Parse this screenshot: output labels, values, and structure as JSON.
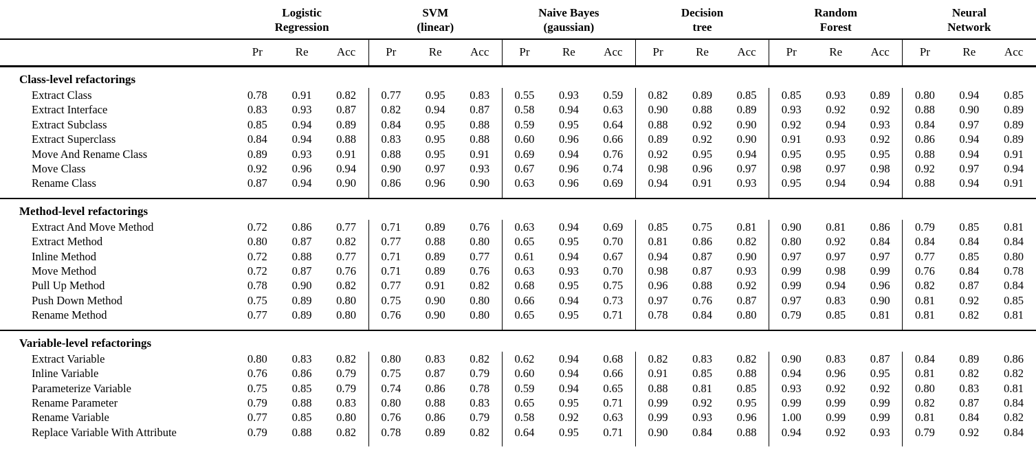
{
  "table": {
    "classifiers": [
      {
        "line1": "Logistic",
        "line2": "Regression"
      },
      {
        "line1": "SVM",
        "line2": "(linear)"
      },
      {
        "line1": "Naive Bayes",
        "line2": "(gaussian)"
      },
      {
        "line1": "Decision",
        "line2": "tree"
      },
      {
        "line1": "Random",
        "line2": "Forest"
      },
      {
        "line1": "Neural",
        "line2": "Network"
      }
    ],
    "metrics": [
      "Pr",
      "Re",
      "Acc"
    ],
    "sections": [
      {
        "title": "Class-level refactorings",
        "rows": [
          {
            "label": "Extract Class",
            "values": [
              "0.78",
              "0.91",
              "0.82",
              "0.77",
              "0.95",
              "0.83",
              "0.55",
              "0.93",
              "0.59",
              "0.82",
              "0.89",
              "0.85",
              "0.85",
              "0.93",
              "0.89",
              "0.80",
              "0.94",
              "0.85"
            ]
          },
          {
            "label": "Extract Interface",
            "values": [
              "0.83",
              "0.93",
              "0.87",
              "0.82",
              "0.94",
              "0.87",
              "0.58",
              "0.94",
              "0.63",
              "0.90",
              "0.88",
              "0.89",
              "0.93",
              "0.92",
              "0.92",
              "0.88",
              "0.90",
              "0.89"
            ]
          },
          {
            "label": "Extract Subclass",
            "values": [
              "0.85",
              "0.94",
              "0.89",
              "0.84",
              "0.95",
              "0.88",
              "0.59",
              "0.95",
              "0.64",
              "0.88",
              "0.92",
              "0.90",
              "0.92",
              "0.94",
              "0.93",
              "0.84",
              "0.97",
              "0.89"
            ]
          },
          {
            "label": "Extract Superclass",
            "values": [
              "0.84",
              "0.94",
              "0.88",
              "0.83",
              "0.95",
              "0.88",
              "0.60",
              "0.96",
              "0.66",
              "0.89",
              "0.92",
              "0.90",
              "0.91",
              "0.93",
              "0.92",
              "0.86",
              "0.94",
              "0.89"
            ]
          },
          {
            "label": "Move And Rename Class",
            "values": [
              "0.89",
              "0.93",
              "0.91",
              "0.88",
              "0.95",
              "0.91",
              "0.69",
              "0.94",
              "0.76",
              "0.92",
              "0.95",
              "0.94",
              "0.95",
              "0.95",
              "0.95",
              "0.88",
              "0.94",
              "0.91"
            ]
          },
          {
            "label": "Move Class",
            "values": [
              "0.92",
              "0.96",
              "0.94",
              "0.90",
              "0.97",
              "0.93",
              "0.67",
              "0.96",
              "0.74",
              "0.98",
              "0.96",
              "0.97",
              "0.98",
              "0.97",
              "0.98",
              "0.92",
              "0.97",
              "0.94"
            ]
          },
          {
            "label": "Rename Class",
            "values": [
              "0.87",
              "0.94",
              "0.90",
              "0.86",
              "0.96",
              "0.90",
              "0.63",
              "0.96",
              "0.69",
              "0.94",
              "0.91",
              "0.93",
              "0.95",
              "0.94",
              "0.94",
              "0.88",
              "0.94",
              "0.91"
            ]
          }
        ]
      },
      {
        "title": "Method-level refactorings",
        "rows": [
          {
            "label": "Extract And Move Method",
            "values": [
              "0.72",
              "0.86",
              "0.77",
              "0.71",
              "0.89",
              "0.76",
              "0.63",
              "0.94",
              "0.69",
              "0.85",
              "0.75",
              "0.81",
              "0.90",
              "0.81",
              "0.86",
              "0.79",
              "0.85",
              "0.81"
            ]
          },
          {
            "label": "Extract Method",
            "values": [
              "0.80",
              "0.87",
              "0.82",
              "0.77",
              "0.88",
              "0.80",
              "0.65",
              "0.95",
              "0.70",
              "0.81",
              "0.86",
              "0.82",
              "0.80",
              "0.92",
              "0.84",
              "0.84",
              "0.84",
              "0.84"
            ]
          },
          {
            "label": "Inline Method",
            "values": [
              "0.72",
              "0.88",
              "0.77",
              "0.71",
              "0.89",
              "0.77",
              "0.61",
              "0.94",
              "0.67",
              "0.94",
              "0.87",
              "0.90",
              "0.97",
              "0.97",
              "0.97",
              "0.77",
              "0.85",
              "0.80"
            ]
          },
          {
            "label": "Move Method",
            "values": [
              "0.72",
              "0.87",
              "0.76",
              "0.71",
              "0.89",
              "0.76",
              "0.63",
              "0.93",
              "0.70",
              "0.98",
              "0.87",
              "0.93",
              "0.99",
              "0.98",
              "0.99",
              "0.76",
              "0.84",
              "0.78"
            ]
          },
          {
            "label": "Pull Up Method",
            "values": [
              "0.78",
              "0.90",
              "0.82",
              "0.77",
              "0.91",
              "0.82",
              "0.68",
              "0.95",
              "0.75",
              "0.96",
              "0.88",
              "0.92",
              "0.99",
              "0.94",
              "0.96",
              "0.82",
              "0.87",
              "0.84"
            ]
          },
          {
            "label": "Push Down Method",
            "values": [
              "0.75",
              "0.89",
              "0.80",
              "0.75",
              "0.90",
              "0.80",
              "0.66",
              "0.94",
              "0.73",
              "0.97",
              "0.76",
              "0.87",
              "0.97",
              "0.83",
              "0.90",
              "0.81",
              "0.92",
              "0.85"
            ]
          },
          {
            "label": "Rename Method",
            "values": [
              "0.77",
              "0.89",
              "0.80",
              "0.76",
              "0.90",
              "0.80",
              "0.65",
              "0.95",
              "0.71",
              "0.78",
              "0.84",
              "0.80",
              "0.79",
              "0.85",
              "0.81",
              "0.81",
              "0.82",
              "0.81"
            ]
          }
        ]
      },
      {
        "title": "Variable-level refactorings",
        "rows": [
          {
            "label": "Extract Variable",
            "values": [
              "0.80",
              "0.83",
              "0.82",
              "0.80",
              "0.83",
              "0.82",
              "0.62",
              "0.94",
              "0.68",
              "0.82",
              "0.83",
              "0.82",
              "0.90",
              "0.83",
              "0.87",
              "0.84",
              "0.89",
              "0.86"
            ]
          },
          {
            "label": "Inline Variable",
            "values": [
              "0.76",
              "0.86",
              "0.79",
              "0.75",
              "0.87",
              "0.79",
              "0.60",
              "0.94",
              "0.66",
              "0.91",
              "0.85",
              "0.88",
              "0.94",
              "0.96",
              "0.95",
              "0.81",
              "0.82",
              "0.82"
            ]
          },
          {
            "label": "Parameterize Variable",
            "values": [
              "0.75",
              "0.85",
              "0.79",
              "0.74",
              "0.86",
              "0.78",
              "0.59",
              "0.94",
              "0.65",
              "0.88",
              "0.81",
              "0.85",
              "0.93",
              "0.92",
              "0.92",
              "0.80",
              "0.83",
              "0.81"
            ]
          },
          {
            "label": "Rename Parameter",
            "values": [
              "0.79",
              "0.88",
              "0.83",
              "0.80",
              "0.88",
              "0.83",
              "0.65",
              "0.95",
              "0.71",
              "0.99",
              "0.92",
              "0.95",
              "0.99",
              "0.99",
              "0.99",
              "0.82",
              "0.87",
              "0.84"
            ]
          },
          {
            "label": "Rename Variable",
            "values": [
              "0.77",
              "0.85",
              "0.80",
              "0.76",
              "0.86",
              "0.79",
              "0.58",
              "0.92",
              "0.63",
              "0.99",
              "0.93",
              "0.96",
              "1.00",
              "0.99",
              "0.99",
              "0.81",
              "0.84",
              "0.82"
            ]
          },
          {
            "label": "Replace Variable With Attribute",
            "values": [
              "0.79",
              "0.88",
              "0.82",
              "0.78",
              "0.89",
              "0.82",
              "0.64",
              "0.95",
              "0.71",
              "0.90",
              "0.84",
              "0.88",
              "0.94",
              "0.92",
              "0.93",
              "0.79",
              "0.92",
              "0.84"
            ]
          }
        ]
      }
    ]
  }
}
